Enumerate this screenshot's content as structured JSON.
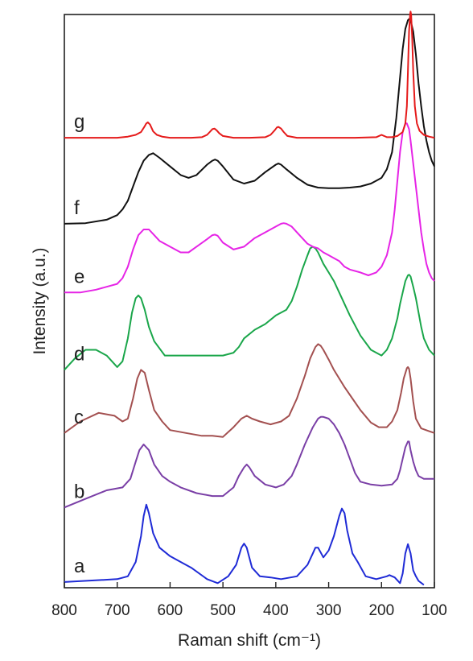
{
  "chart_data": {
    "type": "line",
    "xlabel": "Raman shift (cm⁻¹)",
    "ylabel": "Intensity (a.u.)",
    "xlim": [
      800,
      100
    ],
    "x_reversed": true,
    "xticks": [
      800,
      700,
      600,
      500,
      400,
      300,
      200,
      100
    ],
    "x_tick_labels": [
      "800",
      "700",
      "600",
      "500",
      "400",
      "300",
      "200",
      "100"
    ],
    "y_scale": "arbitrary, stacked traces",
    "ylim": [
      0,
      100
    ],
    "grid": false,
    "legend": "none; each trace labelled by a letter at left",
    "series": [
      {
        "name": "a",
        "color": "#1f2bd6",
        "x": [
          800,
          700,
          680,
          665,
          655,
          650,
          645,
          640,
          632,
          620,
          600,
          580,
          560,
          530,
          510,
          490,
          475,
          465,
          460,
          455,
          445,
          430,
          410,
          390,
          360,
          340,
          330,
          325,
          320,
          310,
          300,
          290,
          280,
          275,
          270,
          265,
          255,
          245,
          230,
          210,
          190,
          185,
          175,
          165,
          160,
          155,
          150,
          145,
          140,
          135,
          130,
          120
        ],
        "y": [
          1.0,
          1.5,
          2.0,
          4.5,
          9.0,
          12.5,
          14.5,
          13.0,
          9.5,
          7.0,
          5.5,
          4.5,
          3.5,
          1.5,
          0.8,
          2.0,
          4.0,
          7.0,
          7.7,
          7.0,
          3.5,
          2.0,
          1.8,
          1.5,
          2.0,
          4.0,
          6.0,
          7.0,
          7.0,
          5.3,
          6.5,
          9.0,
          12.5,
          13.8,
          13.0,
          10.0,
          6.0,
          4.5,
          2.0,
          1.5,
          2.0,
          2.2,
          1.8,
          0.8,
          2.5,
          6.0,
          7.6,
          6.0,
          3.0,
          2.0,
          1.2,
          0.5
        ]
      },
      {
        "name": "b",
        "color": "#7a3fa6",
        "x": [
          800,
          760,
          720,
          690,
          675,
          665,
          658,
          650,
          640,
          630,
          615,
          600,
          580,
          550,
          520,
          500,
          480,
          470,
          460,
          455,
          450,
          440,
          420,
          400,
          385,
          370,
          360,
          345,
          330,
          320,
          315,
          310,
          300,
          290,
          280,
          270,
          260,
          250,
          240,
          220,
          200,
          180,
          170,
          165,
          160,
          155,
          150,
          148,
          145,
          140,
          135,
          130,
          120,
          110,
          100
        ],
        "y": [
          14.0,
          15.5,
          17.0,
          17.5,
          19.0,
          22.0,
          24.0,
          25.0,
          24.0,
          21.5,
          19.5,
          18.5,
          17.5,
          16.5,
          16.0,
          16.0,
          17.5,
          19.5,
          21.0,
          21.5,
          21.0,
          19.5,
          18.0,
          17.5,
          18.0,
          19.5,
          21.5,
          25.0,
          28.0,
          29.5,
          29.8,
          29.8,
          29.5,
          28.5,
          27.0,
          25.0,
          22.5,
          20.0,
          18.5,
          18.0,
          17.8,
          18.0,
          19.0,
          20.5,
          22.5,
          24.5,
          25.5,
          25.5,
          24.0,
          22.0,
          20.5,
          19.5,
          19.0,
          19.0,
          19.0
        ]
      },
      {
        "name": "c",
        "color": "#a35050",
        "x": [
          800,
          770,
          735,
          705,
          690,
          680,
          670,
          662,
          655,
          648,
          640,
          630,
          615,
          600,
          570,
          540,
          520,
          500,
          480,
          465,
          455,
          445,
          430,
          410,
          390,
          375,
          360,
          345,
          335,
          325,
          320,
          315,
          310,
          300,
          290,
          280,
          270,
          255,
          240,
          220,
          205,
          190,
          180,
          170,
          163,
          158,
          152,
          150,
          148,
          145,
          140,
          135,
          125,
          110,
          100
        ],
        "y": [
          27.0,
          29.0,
          30.5,
          30.0,
          29.0,
          29.5,
          33.0,
          36.5,
          38.0,
          37.5,
          34.5,
          31.0,
          29.0,
          27.5,
          27.0,
          26.5,
          26.5,
          26.3,
          28.0,
          29.5,
          30.0,
          29.5,
          29.0,
          28.5,
          29.0,
          30.0,
          33.0,
          37.0,
          40.0,
          42.0,
          42.5,
          42.2,
          41.5,
          39.8,
          38.0,
          36.5,
          35.0,
          33.0,
          31.0,
          28.8,
          28.0,
          28.0,
          29.0,
          31.0,
          34.0,
          36.5,
          38.3,
          38.5,
          38.2,
          36.5,
          32.5,
          29.5,
          27.8,
          27.3,
          27.0
        ]
      },
      {
        "name": "d",
        "color": "#1aa64a",
        "x": [
          800,
          780,
          760,
          740,
          720,
          700,
          690,
          680,
          672,
          665,
          660,
          655,
          648,
          640,
          630,
          610,
          580,
          550,
          520,
          500,
          480,
          470,
          460,
          440,
          420,
          400,
          380,
          370,
          360,
          350,
          340,
          335,
          330,
          325,
          320,
          310,
          300,
          290,
          280,
          270,
          260,
          240,
          220,
          200,
          190,
          180,
          170,
          165,
          160,
          155,
          150,
          148,
          145,
          140,
          135,
          130,
          125,
          120,
          110,
          100
        ],
        "y": [
          38.0,
          40.0,
          41.5,
          41.5,
          40.5,
          38.5,
          39.5,
          43.5,
          48.0,
          50.5,
          51.0,
          50.5,
          48.5,
          45.5,
          43.0,
          40.5,
          40.5,
          40.5,
          40.5,
          40.5,
          41.0,
          42.0,
          43.5,
          45.0,
          46.0,
          47.5,
          48.5,
          50.0,
          52.5,
          55.5,
          58.0,
          59.2,
          59.5,
          59.2,
          58.5,
          56.5,
          55.0,
          53.5,
          51.5,
          49.5,
          47.5,
          44.0,
          41.5,
          40.5,
          41.5,
          43.5,
          47.0,
          49.5,
          51.5,
          53.5,
          54.5,
          54.6,
          54.3,
          52.5,
          50.5,
          48.0,
          45.5,
          43.5,
          41.5,
          40.5
        ]
      },
      {
        "name": "e",
        "color": "#e624e6",
        "x": [
          800,
          770,
          740,
          720,
          700,
          690,
          680,
          670,
          660,
          650,
          640,
          630,
          620,
          600,
          580,
          565,
          550,
          530,
          520,
          515,
          510,
          500,
          480,
          460,
          440,
          420,
          400,
          390,
          385,
          380,
          370,
          360,
          350,
          340,
          330,
          320,
          310,
          300,
          290,
          280,
          270,
          260,
          240,
          225,
          210,
          200,
          190,
          180,
          175,
          170,
          165,
          160,
          155,
          152,
          148,
          145,
          140,
          135,
          130,
          125,
          120,
          115,
          110,
          105,
          100
        ],
        "y": [
          51.5,
          51.5,
          52.0,
          52.5,
          53.0,
          54.0,
          56.0,
          59.0,
          61.5,
          62.5,
          62.5,
          61.5,
          60.5,
          59.5,
          58.5,
          58.5,
          59.5,
          60.8,
          61.5,
          61.6,
          61.4,
          60.2,
          59.0,
          59.5,
          61.0,
          62.0,
          63.0,
          63.5,
          63.6,
          63.5,
          63.0,
          62.0,
          61.0,
          60.0,
          59.5,
          59.2,
          58.5,
          58.0,
          57.5,
          57.0,
          56.0,
          55.5,
          55.0,
          54.5,
          55.0,
          56.0,
          58.0,
          62.0,
          66.0,
          71.0,
          76.0,
          79.5,
          81.0,
          81.0,
          80.0,
          78.0,
          74.0,
          70.0,
          66.0,
          62.0,
          59.0,
          56.5,
          55.0,
          54.0,
          53.5
        ]
      },
      {
        "name": "f",
        "color": "#111111",
        "x": [
          800,
          760,
          720,
          700,
          690,
          680,
          670,
          660,
          650,
          640,
          632,
          620,
          600,
          580,
          565,
          550,
          530,
          520,
          515,
          510,
          500,
          480,
          460,
          440,
          420,
          400,
          395,
          390,
          380,
          360,
          340,
          320,
          300,
          280,
          260,
          240,
          220,
          210,
          200,
          190,
          180,
          172,
          165,
          160,
          155,
          150,
          148,
          145,
          140,
          135,
          130,
          125,
          120,
          115,
          110,
          105,
          100
        ],
        "y": [
          63.5,
          63.6,
          64.2,
          65.0,
          66.0,
          67.5,
          70.0,
          72.5,
          74.5,
          75.5,
          75.8,
          75.0,
          73.5,
          72.0,
          71.5,
          72.0,
          73.8,
          74.5,
          74.7,
          74.5,
          73.5,
          71.2,
          70.5,
          71.0,
          72.5,
          73.8,
          74.0,
          73.8,
          73.0,
          71.5,
          70.3,
          69.8,
          69.7,
          69.7,
          69.8,
          70.0,
          70.5,
          71.0,
          71.5,
          73.0,
          76.0,
          82.0,
          89.0,
          94.0,
          97.5,
          99.0,
          99.2,
          99.0,
          97.0,
          93.0,
          88.0,
          84.0,
          80.5,
          78.0,
          76.0,
          74.5,
          73.5
        ]
      },
      {
        "name": "g",
        "color": "#e51a1a",
        "x": [
          800,
          700,
          680,
          665,
          655,
          648,
          645,
          642,
          638,
          632,
          625,
          615,
          600,
          560,
          540,
          530,
          525,
          520,
          516,
          512,
          507,
          500,
          480,
          450,
          420,
          410,
          402,
          398,
          395,
          390,
          385,
          378,
          360,
          300,
          250,
          210,
          200,
          195,
          190,
          180,
          170,
          160,
          155,
          152,
          150,
          148,
          146,
          145,
          144,
          142,
          140,
          137,
          133,
          128,
          120,
          110,
          100
        ],
        "y": [
          78.5,
          78.5,
          78.7,
          79.0,
          79.5,
          80.5,
          81.0,
          81.2,
          80.8,
          79.6,
          79.0,
          78.7,
          78.5,
          78.5,
          78.6,
          79.0,
          79.5,
          80.0,
          80.1,
          79.8,
          79.3,
          78.8,
          78.5,
          78.5,
          78.6,
          79.0,
          79.8,
          80.3,
          80.4,
          80.1,
          79.5,
          78.8,
          78.5,
          78.5,
          78.5,
          78.6,
          79.0,
          78.8,
          78.6,
          78.6,
          78.8,
          79.5,
          81.0,
          84.0,
          90.0,
          97.0,
          100.0,
          100.5,
          100.0,
          96.0,
          90.0,
          84.0,
          81.0,
          79.7,
          79.0,
          78.7,
          78.5
        ]
      }
    ]
  }
}
